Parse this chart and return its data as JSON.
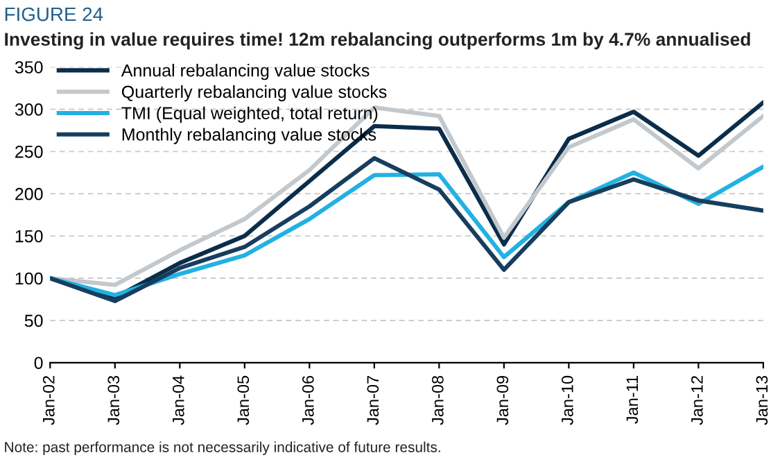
{
  "chart_data": {
    "type": "line",
    "title": "FIGURE 24",
    "subtitle": "Investing in value requires time! 12m rebalancing outperforms 1m by 4.7% annualised",
    "categories": [
      "Jan-02",
      "Jan-03",
      "Jan-04",
      "Jan-05",
      "Jan-06",
      "Jan-07",
      "Jan-08",
      "Jan-09",
      "Jan-10",
      "Jan-11",
      "Jan-12",
      "Jan-13"
    ],
    "series": [
      {
        "name": "Annual rebalancing value stocks",
        "color": "#0b2d4a",
        "values": [
          100,
          77,
          118,
          150,
          215,
          280,
          277,
          140,
          265,
          297,
          245,
          308
        ]
      },
      {
        "name": "Quarterly rebalancing value stocks",
        "color": "#c3c8cc",
        "values": [
          100,
          92,
          133,
          170,
          228,
          302,
          292,
          148,
          255,
          288,
          230,
          292
        ]
      },
      {
        "name": "TMI (Equal weighted, total return)",
        "color": "#22b1e3",
        "values": [
          100,
          80,
          105,
          127,
          170,
          222,
          223,
          125,
          190,
          225,
          188,
          232
        ]
      },
      {
        "name": "Monthly rebalancing value stocks",
        "color": "#173e5e",
        "values": [
          100,
          73,
          112,
          137,
          185,
          242,
          205,
          110,
          190,
          217,
          192,
          180
        ]
      }
    ],
    "ylim": [
      0,
      350
    ],
    "yticks": [
      0,
      50,
      100,
      150,
      200,
      250,
      300,
      350
    ],
    "grid": "y",
    "legend": "top left",
    "line_style": "solid",
    "marker": "none",
    "annotations": [
      "Note: past performance is not necessarily indicative of future results."
    ]
  }
}
